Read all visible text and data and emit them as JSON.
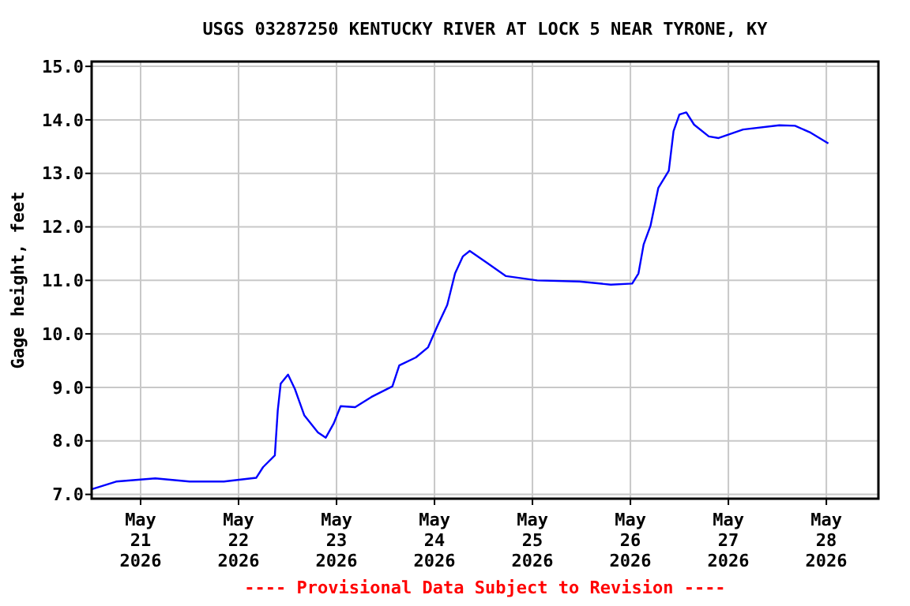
{
  "chart_data": {
    "type": "line",
    "title": "USGS 03287250 KENTUCKY RIVER AT LOCK 5 NEAR TYRONE, KY",
    "ylabel": "Gage height, feet",
    "annotations": [
      "---- Provisional Data Subject to Revision ----"
    ],
    "x": [
      "2026-05-20T12:07",
      "2026-05-20T18:00",
      "2026-05-21T03:36",
      "2026-05-21T12:00",
      "2026-05-21T20:24",
      "2026-05-22T04:19",
      "2026-05-22T06:00",
      "2026-05-22T08:53",
      "2026-05-22T09:36",
      "2026-05-22T10:19",
      "2026-05-22T12:07",
      "2026-05-22T13:48",
      "2026-05-22T16:05",
      "2026-05-22T19:26",
      "2026-05-22T21:22",
      "2026-05-22T23:20",
      "2026-05-23T01:00",
      "2026-05-23T04:34",
      "2026-05-23T08:31",
      "2026-05-23T13:41",
      "2026-05-23T15:22",
      "2026-05-23T19:26",
      "2026-05-23T22:26",
      "2026-05-24T00:43",
      "2026-05-24T03:07",
      "2026-05-24T05:02",
      "2026-05-24T06:58",
      "2026-05-24T08:38",
      "2026-05-24T12:50",
      "2026-05-24T17:31",
      "2026-05-25T01:10",
      "2026-05-25T11:29",
      "2026-05-25T19:12",
      "2026-05-26T00:26",
      "2026-05-26T01:58",
      "2026-05-26T03:14",
      "2026-05-26T04:55",
      "2026-05-26T06:50",
      "2026-05-26T09:24",
      "2026-05-26T10:34",
      "2026-05-26T12:00",
      "2026-05-26T13:41",
      "2026-05-26T15:36",
      "2026-05-26T19:12",
      "2026-05-26T21:36",
      "2026-05-27T03:36",
      "2026-05-27T12:29",
      "2026-05-27T16:19",
      "2026-05-27T20:10",
      "2026-05-28T00:29"
    ],
    "series": [
      {
        "color": "#0000ff",
        "values": [
          7.1,
          7.24,
          7.3,
          7.24,
          7.24,
          7.31,
          7.51,
          7.73,
          8.57,
          9.07,
          9.24,
          8.97,
          8.48,
          8.16,
          8.06,
          8.33,
          8.65,
          8.63,
          8.82,
          9.02,
          9.41,
          9.56,
          9.75,
          10.15,
          10.54,
          11.13,
          11.45,
          11.55,
          11.33,
          11.08,
          11.0,
          10.98,
          10.92,
          10.94,
          11.13,
          11.67,
          12.02,
          12.73,
          13.05,
          13.79,
          14.1,
          14.14,
          13.91,
          13.69,
          13.66,
          13.82,
          13.9,
          13.89,
          13.76,
          13.56
        ]
      }
    ],
    "xlim": [
      "2026-05-20T12:00",
      "2026-05-28T12:45"
    ],
    "xticks": [
      {
        "value": "2026-05-21",
        "label": "May\n21\n2026"
      },
      {
        "value": "2026-05-22",
        "label": "May\n22\n2026"
      },
      {
        "value": "2026-05-23",
        "label": "May\n23\n2026"
      },
      {
        "value": "2026-05-24",
        "label": "May\n24\n2026"
      },
      {
        "value": "2026-05-25",
        "label": "May\n25\n2026"
      },
      {
        "value": "2026-05-26",
        "label": "May\n26\n2026"
      },
      {
        "value": "2026-05-27",
        "label": "May\n27\n2026"
      },
      {
        "value": "2026-05-28",
        "label": "May\n28\n2026"
      }
    ],
    "ylim": [
      6.92,
      15.09
    ],
    "yticks": [
      {
        "value": 7,
        "label": "7.0"
      },
      {
        "value": 8,
        "label": "8.0"
      },
      {
        "value": 9,
        "label": "9.0"
      },
      {
        "value": 10,
        "label": "10.0"
      },
      {
        "value": 11,
        "label": "11.0"
      },
      {
        "value": 12,
        "label": "12.0"
      },
      {
        "value": 13,
        "label": "13.0"
      },
      {
        "value": 14,
        "label": "14.0"
      },
      {
        "value": 15,
        "label": "15.0"
      }
    ],
    "grid": true,
    "marker": "none",
    "line_style": "solid"
  }
}
